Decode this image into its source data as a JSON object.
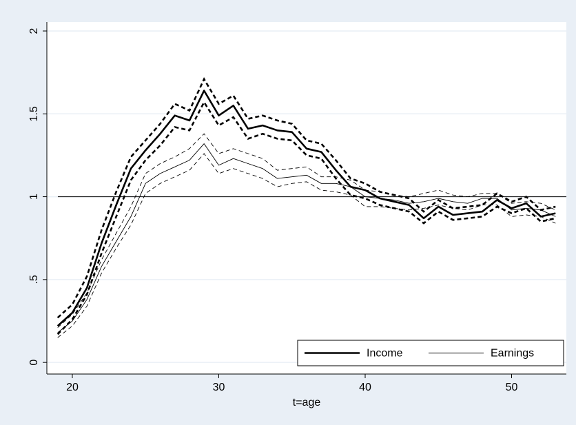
{
  "chart_data": {
    "type": "line",
    "x": [
      19,
      20,
      21,
      22,
      23,
      24,
      25,
      26,
      27,
      28,
      29,
      30,
      31,
      32,
      33,
      34,
      35,
      36,
      37,
      38,
      39,
      40,
      41,
      42,
      43,
      44,
      45,
      46,
      47,
      48,
      49,
      50,
      51,
      52,
      53
    ],
    "x_label": "t=age",
    "xlim": [
      18.26,
      53.74
    ],
    "xticks": [
      20,
      30,
      40,
      50
    ],
    "ylim": [
      -0.07,
      2.054
    ],
    "yticks": [
      0,
      {
        "value": 0.5,
        "label": ".5"
      },
      1,
      1.5,
      2
    ],
    "grid": true,
    "hline": 1,
    "legend_position": "lower right",
    "series": [
      {
        "name": "Income",
        "color": "#000000",
        "line_width": 2.6,
        "values": [
          0.22,
          0.3,
          0.45,
          0.72,
          0.95,
          1.17,
          1.28,
          1.38,
          1.49,
          1.46,
          1.64,
          1.49,
          1.55,
          1.41,
          1.43,
          1.4,
          1.39,
          1.29,
          1.27,
          1.16,
          1.06,
          1.04,
          0.99,
          0.97,
          0.95,
          0.87,
          0.94,
          0.89,
          0.9,
          0.91,
          0.98,
          0.93,
          0.96,
          0.88,
          0.9
        ],
        "upper": [
          0.27,
          0.35,
          0.52,
          0.8,
          1.03,
          1.24,
          1.34,
          1.44,
          1.56,
          1.52,
          1.71,
          1.56,
          1.61,
          1.47,
          1.49,
          1.46,
          1.44,
          1.34,
          1.32,
          1.22,
          1.11,
          1.08,
          1.03,
          1.01,
          0.99,
          0.91,
          0.98,
          0.93,
          0.94,
          0.95,
          1.02,
          0.97,
          1.0,
          0.92,
          0.94
        ],
        "lower": [
          0.17,
          0.26,
          0.41,
          0.66,
          0.88,
          1.1,
          1.22,
          1.31,
          1.42,
          1.4,
          1.57,
          1.43,
          1.48,
          1.35,
          1.38,
          1.35,
          1.34,
          1.25,
          1.23,
          1.11,
          1.01,
          0.99,
          0.95,
          0.93,
          0.91,
          0.84,
          0.91,
          0.86,
          0.87,
          0.88,
          0.94,
          0.9,
          0.93,
          0.85,
          0.87
        ]
      },
      {
        "name": "Earnings",
        "color": "#000000",
        "line_width": 0.9,
        "values": [
          0.18,
          0.25,
          0.38,
          0.58,
          0.73,
          0.88,
          1.08,
          1.14,
          1.18,
          1.22,
          1.32,
          1.19,
          1.23,
          1.2,
          1.17,
          1.11,
          1.12,
          1.13,
          1.08,
          1.08,
          1.06,
          1.0,
          0.99,
          0.98,
          0.96,
          0.97,
          0.99,
          0.97,
          0.96,
          0.99,
          0.99,
          0.92,
          0.93,
          0.92,
          0.88
        ],
        "upper": [
          0.21,
          0.29,
          0.42,
          0.62,
          0.78,
          0.94,
          1.14,
          1.2,
          1.24,
          1.29,
          1.38,
          1.26,
          1.29,
          1.26,
          1.23,
          1.16,
          1.17,
          1.18,
          1.12,
          1.12,
          1.1,
          1.04,
          1.03,
          1.01,
          1.0,
          1.02,
          1.04,
          1.01,
          1.0,
          1.02,
          1.02,
          0.96,
          0.97,
          0.96,
          0.92
        ],
        "lower": [
          0.15,
          0.22,
          0.34,
          0.54,
          0.69,
          0.83,
          1.02,
          1.08,
          1.12,
          1.16,
          1.26,
          1.14,
          1.17,
          1.14,
          1.11,
          1.06,
          1.08,
          1.09,
          1.04,
          1.03,
          1.01,
          0.94,
          0.94,
          0.93,
          0.92,
          0.93,
          0.95,
          0.93,
          0.92,
          0.95,
          0.95,
          0.88,
          0.89,
          0.88,
          0.84
        ]
      }
    ]
  }
}
